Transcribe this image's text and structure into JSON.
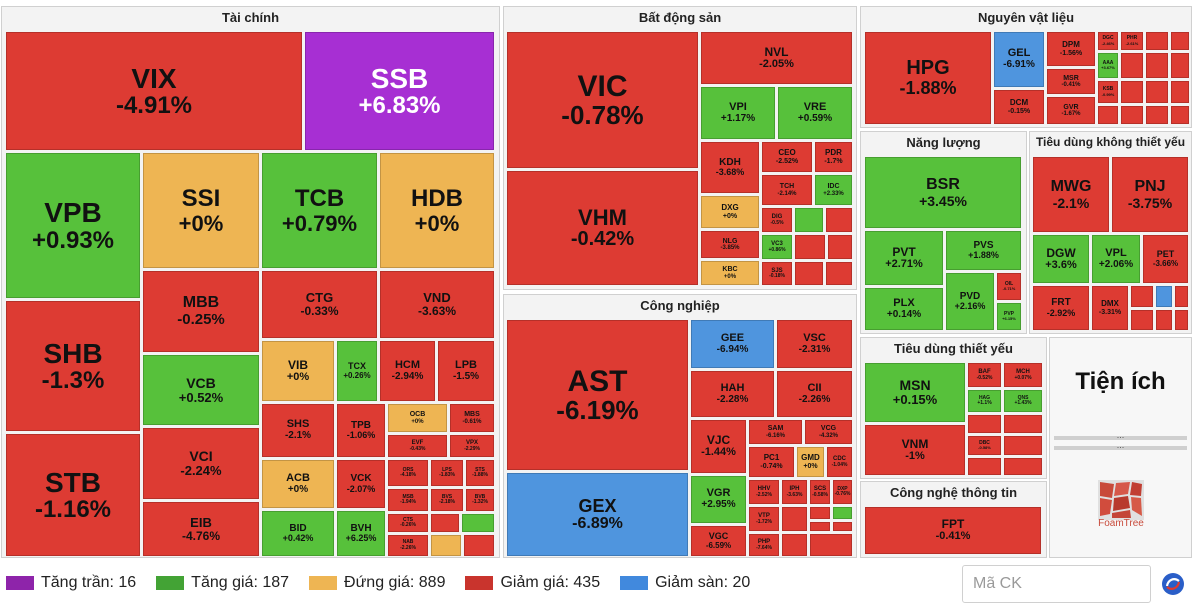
{
  "sectors": {
    "finance": "Tài chính",
    "realestate": "Bất động sản",
    "materials": "Nguyên vật liệu",
    "energy": "Năng lượng",
    "consumer_discretionary": "Tiêu dùng không thiết yếu",
    "industrials": "Công nghiệp",
    "consumer_staples": "Tiêu dùng thiết yếu",
    "it": "Công nghệ thông tin",
    "utilities": "Tiện ích"
  },
  "stocks": {
    "VIX": {
      "t": "VIX",
      "v": "-4.91%"
    },
    "SSB": {
      "t": "SSB",
      "v": "+6.83%"
    },
    "VPB": {
      "t": "VPB",
      "v": "+0.93%"
    },
    "SSI": {
      "t": "SSI",
      "v": "+0%"
    },
    "TCB": {
      "t": "TCB",
      "v": "+0.79%"
    },
    "HDB": {
      "t": "HDB",
      "v": "+0%"
    },
    "SHB": {
      "t": "SHB",
      "v": "-1.3%"
    },
    "STB": {
      "t": "STB",
      "v": "-1.16%"
    },
    "MBB": {
      "t": "MBB",
      "v": "-0.25%"
    },
    "VCB": {
      "t": "VCB",
      "v": "+0.52%"
    },
    "VCI": {
      "t": "VCI",
      "v": "-2.24%"
    },
    "EIB": {
      "t": "EIB",
      "v": "-4.76%"
    },
    "CTG": {
      "t": "CTG",
      "v": "-0.33%"
    },
    "VND": {
      "t": "VND",
      "v": "-3.63%"
    },
    "VIB": {
      "t": "VIB",
      "v": "+0%"
    },
    "TCX": {
      "t": "TCX",
      "v": "+0.26%"
    },
    "HCM": {
      "t": "HCM",
      "v": "-2.94%"
    },
    "LPB": {
      "t": "LPB",
      "v": "-1.5%"
    },
    "SHS": {
      "t": "SHS",
      "v": "-2.1%"
    },
    "TPB": {
      "t": "TPB",
      "v": "-1.06%"
    },
    "OCB": {
      "t": "OCB",
      "v": "+0%"
    },
    "MBS": {
      "t": "MBS",
      "v": "-0.61%"
    },
    "EVF": {
      "t": "EVF",
      "v": "-0.43%"
    },
    "VPX": {
      "t": "VPX",
      "v": "-2.29%"
    },
    "ACB": {
      "t": "ACB",
      "v": "+0%"
    },
    "VCK": {
      "t": "VCK",
      "v": "-2.07%"
    },
    "ORS": {
      "t": "ORS",
      "v": "-4.18%"
    },
    "LPS": {
      "t": "LPS",
      "v": "-1.83%"
    },
    "STB2": {
      "t": "STS",
      "v": "-1.88%"
    },
    "MSB": {
      "t": "MSB",
      "v": "-1.94%"
    },
    "BVS": {
      "t": "BVS",
      "v": "-2.18%"
    },
    "BVB": {
      "t": "BVB",
      "v": "-1.32%"
    },
    "CTS": {
      "t": "CTS",
      "v": "-0.26%"
    },
    "NAB": {
      "t": "NAB",
      "v": "-2.26%"
    },
    "BID": {
      "t": "BID",
      "v": "+0.42%"
    },
    "BVH": {
      "t": "BVH",
      "v": "+6.25%"
    },
    "VIC": {
      "t": "VIC",
      "v": "-0.78%"
    },
    "VHM": {
      "t": "VHM",
      "v": "-0.42%"
    },
    "NVL": {
      "t": "NVL",
      "v": "-2.05%"
    },
    "VPI": {
      "t": "VPI",
      "v": "+1.17%"
    },
    "VRE": {
      "t": "VRE",
      "v": "+0.59%"
    },
    "KDH": {
      "t": "KDH",
      "v": "-3.68%"
    },
    "CEO": {
      "t": "CEO",
      "v": "-2.52%"
    },
    "PDR": {
      "t": "PDR",
      "v": "-1.7%"
    },
    "TCH": {
      "t": "TCH",
      "v": "-2.14%"
    },
    "IDC": {
      "t": "IDC",
      "v": "+2.33%"
    },
    "DXG": {
      "t": "DXG",
      "v": "+0%"
    },
    "DIG": {
      "t": "DIG",
      "v": "-0.5%"
    },
    "NLG": {
      "t": "NLG",
      "v": "-3.85%"
    },
    "VC3": {
      "t": "VC3",
      "v": "+0.86%"
    },
    "KBC": {
      "t": "KBC",
      "v": "+0%"
    },
    "SJS": {
      "t": "SJS",
      "v": "-0.18%"
    },
    "AST": {
      "t": "AST",
      "v": "-6.19%"
    },
    "GEX": {
      "t": "GEX",
      "v": "-6.89%"
    },
    "GEE": {
      "t": "GEE",
      "v": "-6.94%"
    },
    "VSC": {
      "t": "VSC",
      "v": "-2.31%"
    },
    "HAH": {
      "t": "HAH",
      "v": "-2.28%"
    },
    "CII": {
      "t": "CII",
      "v": "-2.26%"
    },
    "VJC": {
      "t": "VJC",
      "v": "-1.44%"
    },
    "SAM": {
      "t": "SAM",
      "v": "-6.16%"
    },
    "VCG": {
      "t": "VCG",
      "v": "-4.32%"
    },
    "PC1": {
      "t": "PC1",
      "v": "-0.74%"
    },
    "GMD": {
      "t": "GMD",
      "v": "+0%"
    },
    "CDC": {
      "t": "CDC",
      "v": "-1.04%"
    },
    "VGR": {
      "t": "VGR",
      "v": "+2.95%"
    },
    "HHV": {
      "t": "HHV",
      "v": "-2.52%"
    },
    "IPH": {
      "t": "IPH",
      "v": "-3.63%"
    },
    "SCS": {
      "t": "SCS",
      "v": "-0.58%"
    },
    "DXP": {
      "t": "DXP",
      "v": "-0.76%"
    },
    "VTP": {
      "t": "VTP",
      "v": "-1.72%"
    },
    "VGC": {
      "t": "VGC",
      "v": "-6.59%"
    },
    "PHP": {
      "t": "PHP",
      "v": "-7.64%"
    },
    "HPG": {
      "t": "HPG",
      "v": "-1.88%"
    },
    "GEL": {
      "t": "GEL",
      "v": "-6.91%"
    },
    "DPM": {
      "t": "DPM",
      "v": "-1.56%"
    },
    "DGC": {
      "t": "DGC",
      "v": "-2.46%"
    },
    "PHR": {
      "t": "PHR",
      "v": "-2.61%"
    },
    "AAA": {
      "t": "AAA",
      "v": "+3.67%"
    },
    "MSR": {
      "t": "MSR",
      "v": "-0.41%"
    },
    "KSB": {
      "t": "KSB",
      "v": "-0.99%"
    },
    "DCM": {
      "t": "DCM",
      "v": "-0.15%"
    },
    "GVR": {
      "t": "GVR",
      "v": "-1.67%"
    },
    "BSR": {
      "t": "BSR",
      "v": "+3.45%"
    },
    "PVT": {
      "t": "PVT",
      "v": "+2.71%"
    },
    "PVS": {
      "t": "PVS",
      "v": "+1.88%"
    },
    "PLX": {
      "t": "PLX",
      "v": "+0.14%"
    },
    "PVD": {
      "t": "PVD",
      "v": "+2.16%"
    },
    "OIL": {
      "t": "OIL",
      "v": "-0.71%"
    },
    "PVP": {
      "t": "PVP",
      "v": "+6.15%"
    },
    "MWG": {
      "t": "MWG",
      "v": "-2.1%"
    },
    "PNJ": {
      "t": "PNJ",
      "v": "-3.75%"
    },
    "DGW": {
      "t": "DGW",
      "v": "+3.6%"
    },
    "VPL": {
      "t": "VPL",
      "v": "+2.06%"
    },
    "PET": {
      "t": "PET",
      "v": "-3.66%"
    },
    "FRT": {
      "t": "FRT",
      "v": "-2.92%"
    },
    "DMX": {
      "t": "DMX",
      "v": "-3.31%"
    },
    "MSN": {
      "t": "MSN",
      "v": "+0.15%"
    },
    "BAF": {
      "t": "BAF",
      "v": "-0.52%"
    },
    "MCH": {
      "t": "MCH",
      "v": "+0.07%"
    },
    "HAG": {
      "t": "HAG",
      "v": "+1.1%"
    },
    "QNS": {
      "t": "QNS",
      "v": "+1.43%"
    },
    "VNM": {
      "t": "VNM",
      "v": "-1%"
    },
    "DBC": {
      "t": "DBC",
      "v": "-0.58%"
    },
    "FPT": {
      "t": "FPT",
      "v": "-0.41%"
    }
  },
  "utilities": {
    "ellipsis1": "...",
    "ellipsis2": "..."
  },
  "legend": [
    {
      "label": "Tăng trần: 16",
      "color": "#8e24aa"
    },
    {
      "label": "Tăng giá: 187",
      "color": "#43a335"
    },
    {
      "label": "Đứng giá: 889",
      "color": "#eeb553"
    },
    {
      "label": "Giảm giá: 435",
      "color": "#c9342d"
    },
    {
      "label": "Giảm sàn: 20",
      "color": "#4189dd"
    }
  ],
  "search": {
    "placeholder": "Mã CK"
  },
  "brand": {
    "foamtree": "FoamTree"
  },
  "colors": {
    "up": "#57c13b",
    "down": "#dd3b33",
    "flat": "#eeb553",
    "ceiling": "#a72fd3",
    "floor": "#4f95de"
  }
}
